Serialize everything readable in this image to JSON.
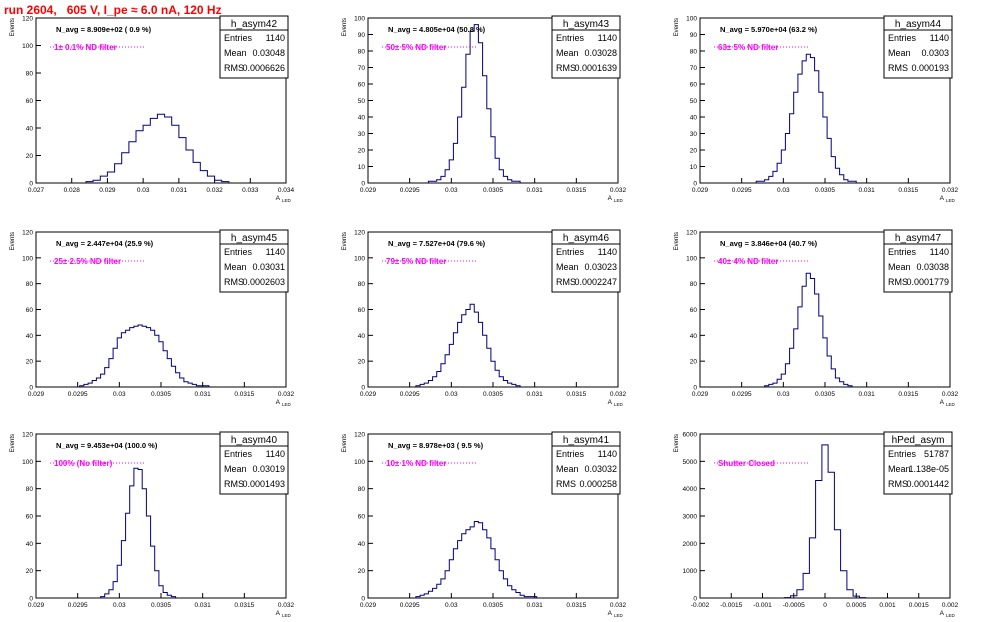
{
  "header": {
    "run_label": "run 2604,   605 V, I_pe ≈ 6.0 nA, 120 Hz"
  },
  "colors": {
    "histogram": "#000080",
    "filter_label": "#ff00ff",
    "run_label": "#ff0000",
    "frame": "#000000"
  },
  "stats_labels": {
    "entries": "Entries",
    "mean": "Mean",
    "rms": "RMS"
  },
  "axis_labels": {
    "y": "Events",
    "x": "A",
    "x_sub": "LED"
  },
  "chart_data": [
    {
      "type": "bar",
      "name": "h_asym42",
      "navg": "N_avg = 8.909e+02 ( 0.9 %)",
      "filter": "1± 0.1% ND filter",
      "entries": "1140",
      "mean": "0.03048",
      "rms": "0.0006626",
      "xlim": [
        0.027,
        0.034
      ],
      "ylim": [
        0,
        120
      ],
      "xticks": [
        "0.027",
        "0.028",
        "0.029",
        "0.03",
        "0.031",
        "0.032",
        "0.033",
        "0.034"
      ],
      "yticks": [
        "0",
        "20",
        "40",
        "60",
        "80",
        "100",
        "120"
      ],
      "x": [
        0.0285,
        0.0287,
        0.0289,
        0.0291,
        0.0293,
        0.0295,
        0.0297,
        0.0299,
        0.0301,
        0.0303,
        0.0305,
        0.0307,
        0.0309,
        0.0311,
        0.0313,
        0.0315,
        0.0317,
        0.0319,
        0.0321,
        0.0323
      ],
      "values": [
        1,
        2,
        5,
        8,
        14,
        22,
        30,
        38,
        42,
        47,
        50,
        48,
        42,
        33,
        24,
        15,
        9,
        5,
        2,
        1
      ]
    },
    {
      "type": "bar",
      "name": "h_asym43",
      "navg": "N_avg = 4.805e+04 (50.8 %)",
      "filter": "50± 5% ND filter",
      "entries": "1140",
      "mean": "0.03028",
      "rms": "0.0001639",
      "xlim": [
        0.029,
        0.032
      ],
      "ylim": [
        0,
        100
      ],
      "xticks": [
        "0.029",
        "0.0295",
        "0.03",
        "0.0305",
        "0.031",
        "0.0315",
        "0.032"
      ],
      "yticks": [
        "0",
        "10",
        "20",
        "30",
        "40",
        "50",
        "60",
        "70",
        "80",
        "90",
        "100"
      ],
      "x": [
        0.02975,
        0.0298,
        0.02985,
        0.0299,
        0.02995,
        0.03,
        0.03005,
        0.0301,
        0.03015,
        0.0302,
        0.03025,
        0.0303,
        0.03035,
        0.0304,
        0.03045,
        0.0305,
        0.03055,
        0.0306,
        0.03065,
        0.0307,
        0.03075,
        0.0308
      ],
      "values": [
        1,
        1,
        2,
        4,
        8,
        14,
        24,
        40,
        58,
        78,
        92,
        96,
        85,
        65,
        45,
        28,
        15,
        8,
        4,
        2,
        1,
        1
      ]
    },
    {
      "type": "bar",
      "name": "h_asym44",
      "navg": "N_avg = 5.970e+04 (63.2 %)",
      "filter": "63± 5% ND filter",
      "entries": "1140",
      "mean": "0.0303",
      "rms": "0.000193",
      "xlim": [
        0.029,
        0.032
      ],
      "ylim": [
        0,
        100
      ],
      "xticks": [
        "0.029",
        "0.0295",
        "0.03",
        "0.0305",
        "0.031",
        "0.0315",
        "0.032"
      ],
      "yticks": [
        "0",
        "10",
        "20",
        "30",
        "40",
        "50",
        "60",
        "70",
        "80",
        "90",
        "100"
      ],
      "x": [
        0.0297,
        0.02975,
        0.0298,
        0.02985,
        0.0299,
        0.02995,
        0.03,
        0.03005,
        0.0301,
        0.03015,
        0.0302,
        0.03025,
        0.0303,
        0.03035,
        0.0304,
        0.03045,
        0.0305,
        0.03055,
        0.0306,
        0.03065,
        0.0307,
        0.03075,
        0.0308,
        0.03085
      ],
      "values": [
        1,
        1,
        2,
        4,
        7,
        12,
        20,
        30,
        42,
        55,
        66,
        74,
        78,
        76,
        68,
        55,
        40,
        27,
        16,
        9,
        5,
        2,
        1,
        1
      ]
    },
    {
      "type": "bar",
      "name": "h_asym45",
      "navg": "N_avg = 2.447e+04 (25.9 %)",
      "filter": "25± 2.5% ND filter",
      "entries": "1140",
      "mean": "0.03031",
      "rms": "0.0002603",
      "xlim": [
        0.029,
        0.032
      ],
      "ylim": [
        0,
        120
      ],
      "xticks": [
        "0.029",
        "0.0295",
        "0.03",
        "0.0305",
        "0.031",
        "0.0315",
        "0.032"
      ],
      "yticks": [
        "0",
        "20",
        "40",
        "60",
        "80",
        "100",
        "120"
      ],
      "x": [
        0.02955,
        0.0296,
        0.02965,
        0.0297,
        0.02975,
        0.0298,
        0.02985,
        0.0299,
        0.02995,
        0.03,
        0.03005,
        0.0301,
        0.03015,
        0.0302,
        0.03025,
        0.0303,
        0.03035,
        0.0304,
        0.03045,
        0.0305,
        0.03055,
        0.0306,
        0.03065,
        0.0307,
        0.03075,
        0.0308,
        0.03085,
        0.0309,
        0.03095,
        0.031,
        0.03105
      ],
      "values": [
        1,
        2,
        3,
        5,
        7,
        10,
        15,
        22,
        30,
        38,
        42,
        44,
        46,
        47,
        48,
        47,
        46,
        44,
        40,
        35,
        28,
        22,
        16,
        11,
        7,
        4,
        3,
        2,
        1,
        1,
        1
      ]
    },
    {
      "type": "bar",
      "name": "h_asym46",
      "navg": "N_avg = 7.527e+04 (79.6 %)",
      "filter": "79± 5% ND filter",
      "entries": "1140",
      "mean": "0.03023",
      "rms": "0.0002247",
      "xlim": [
        0.029,
        0.032
      ],
      "ylim": [
        0,
        120
      ],
      "xticks": [
        "0.029",
        "0.0295",
        "0.03",
        "0.0305",
        "0.031",
        "0.0315",
        "0.032"
      ],
      "yticks": [
        "0",
        "20",
        "40",
        "60",
        "80",
        "100",
        "120"
      ],
      "x": [
        0.0296,
        0.02965,
        0.0297,
        0.02975,
        0.0298,
        0.02985,
        0.0299,
        0.02995,
        0.03,
        0.03005,
        0.0301,
        0.03015,
        0.0302,
        0.03025,
        0.0303,
        0.03035,
        0.0304,
        0.03045,
        0.0305,
        0.03055,
        0.0306,
        0.03065,
        0.0307,
        0.03075,
        0.0308
      ],
      "values": [
        1,
        2,
        3,
        5,
        8,
        12,
        18,
        25,
        33,
        42,
        50,
        56,
        60,
        64,
        58,
        50,
        40,
        30,
        20,
        13,
        8,
        5,
        3,
        2,
        1
      ]
    },
    {
      "type": "bar",
      "name": "h_asym47",
      "navg": "N_avg = 3.846e+04 (40.7 %)",
      "filter": "40± 4% ND filter",
      "entries": "1140",
      "mean": "0.03038",
      "rms": "0.0001779",
      "xlim": [
        0.029,
        0.032
      ],
      "ylim": [
        0,
        120
      ],
      "xticks": [
        "0.029",
        "0.0295",
        "0.03",
        "0.0305",
        "0.031",
        "0.0315",
        "0.032"
      ],
      "yticks": [
        "0",
        "20",
        "40",
        "60",
        "80",
        "100",
        "120"
      ],
      "x": [
        0.0298,
        0.02985,
        0.0299,
        0.02995,
        0.03,
        0.03005,
        0.0301,
        0.03015,
        0.0302,
        0.03025,
        0.0303,
        0.03035,
        0.0304,
        0.03045,
        0.0305,
        0.03055,
        0.0306,
        0.03065,
        0.0307,
        0.03075,
        0.0308
      ],
      "values": [
        1,
        2,
        3,
        6,
        10,
        18,
        30,
        45,
        62,
        78,
        88,
        84,
        72,
        55,
        38,
        24,
        14,
        7,
        4,
        2,
        1
      ]
    },
    {
      "type": "bar",
      "name": "h_asym40",
      "navg": "N_avg = 9.453e+04 (100.0 %)",
      "filter": "100% (No filter)",
      "entries": "1140",
      "mean": "0.03019",
      "rms": "0.0001493",
      "xlim": [
        0.029,
        0.032
      ],
      "ylim": [
        0,
        120
      ],
      "xticks": [
        "0.029",
        "0.0295",
        "0.03",
        "0.0305",
        "0.031",
        "0.0315",
        "0.032"
      ],
      "yticks": [
        "0",
        "20",
        "40",
        "60",
        "80",
        "100",
        "120"
      ],
      "x": [
        0.0298,
        0.02985,
        0.0299,
        0.02995,
        0.03,
        0.03005,
        0.0301,
        0.03015,
        0.0302,
        0.03025,
        0.0303,
        0.03035,
        0.0304,
        0.03045,
        0.0305,
        0.03055,
        0.0306,
        0.03065
      ],
      "values": [
        1,
        3,
        6,
        12,
        24,
        42,
        62,
        82,
        95,
        94,
        80,
        60,
        38,
        20,
        9,
        4,
        2,
        1
      ]
    },
    {
      "type": "bar",
      "name": "h_asym41",
      "navg": "N_avg = 8.978e+03 ( 9.5 %)",
      "filter": "10± 1% ND filter",
      "entries": "1140",
      "mean": "0.03032",
      "rms": "0.000258",
      "xlim": [
        0.029,
        0.032
      ],
      "ylim": [
        0,
        120
      ],
      "xticks": [
        "0.029",
        "0.0295",
        "0.03",
        "0.0305",
        "0.031",
        "0.0315",
        "0.032"
      ],
      "yticks": [
        "0",
        "20",
        "40",
        "60",
        "80",
        "100",
        "120"
      ],
      "x": [
        0.0296,
        0.02965,
        0.0297,
        0.02975,
        0.0298,
        0.02985,
        0.0299,
        0.02995,
        0.03,
        0.03005,
        0.0301,
        0.03015,
        0.0302,
        0.03025,
        0.0303,
        0.03035,
        0.0304,
        0.03045,
        0.0305,
        0.03055,
        0.0306,
        0.03065,
        0.0307,
        0.03075,
        0.0308,
        0.03085,
        0.0309,
        0.03095,
        0.031
      ],
      "values": [
        1,
        2,
        3,
        5,
        7,
        10,
        14,
        20,
        28,
        36,
        42,
        47,
        50,
        52,
        56,
        55,
        50,
        44,
        36,
        28,
        20,
        14,
        9,
        6,
        4,
        2,
        1,
        1,
        1
      ]
    },
    {
      "type": "bar",
      "name": "hPed_asym",
      "navg": "",
      "filter": "Shutter Closed",
      "entries": "51787",
      "mean": "1.138e-05",
      "rms": "0.0001442",
      "xlim": [
        -0.002,
        0.002
      ],
      "ylim": [
        0,
        6000
      ],
      "xticks": [
        "-0.002",
        "-0.0015",
        "-0.001",
        "-0.0005",
        "0",
        "0.0005",
        "0.001",
        "0.0015",
        "0.002"
      ],
      "yticks": [
        "0",
        "1000",
        "2000",
        "3000",
        "4000",
        "5000",
        "6000"
      ],
      "x": [
        -0.0006,
        -0.0005,
        -0.0004,
        -0.0003,
        -0.0002,
        -0.0001,
        0.0,
        0.0001,
        0.0002,
        0.0003,
        0.0004,
        0.0005,
        0.0006
      ],
      "values": [
        15,
        80,
        300,
        900,
        2200,
        4300,
        5600,
        4600,
        2500,
        1000,
        300,
        70,
        15
      ]
    }
  ]
}
